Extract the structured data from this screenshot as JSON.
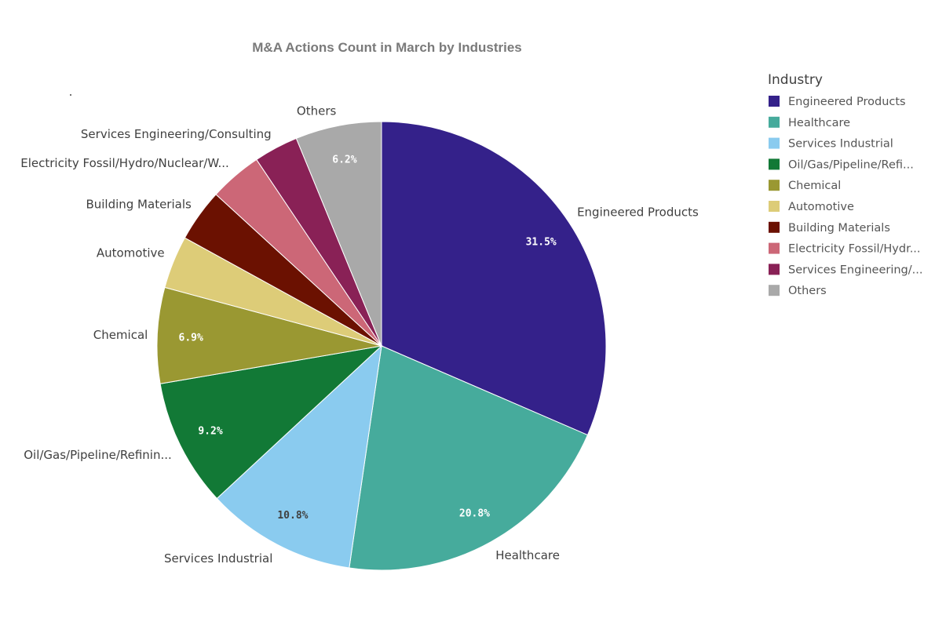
{
  "chart_data": {
    "type": "pie",
    "title": "M&A Actions Count in March by Industries",
    "legend_title": "Industry",
    "legend_position": "right",
    "slices": [
      {
        "name": "Engineered Products",
        "outer_label": "Engineered Products",
        "legend_label": "Engineered Products",
        "value": 31.5,
        "pct_label": "31.5%",
        "color": "#34218a",
        "pct_color": "#ffffff"
      },
      {
        "name": "Healthcare",
        "outer_label": "Healthcare",
        "legend_label": "Healthcare",
        "value": 20.8,
        "pct_label": "20.8%",
        "color": "#46ab9c",
        "pct_color": "#ffffff"
      },
      {
        "name": "Services Industrial",
        "outer_label": "Services Industrial",
        "legend_label": "Services Industrial",
        "value": 10.8,
        "pct_label": "10.8%",
        "color": "#8acbef",
        "pct_color": "#404040"
      },
      {
        "name": "Oil/Gas/Pipeline/Refining",
        "outer_label": "Oil/Gas/Pipeline/Refinin...",
        "legend_label": "Oil/Gas/Pipeline/Refi...",
        "value": 9.2,
        "pct_label": "9.2%",
        "color": "#127936",
        "pct_color": "#ffffff"
      },
      {
        "name": "Chemical",
        "outer_label": "Chemical",
        "legend_label": "Chemical",
        "value": 6.9,
        "pct_label": "6.9%",
        "color": "#9a9832",
        "pct_color": "#ffffff"
      },
      {
        "name": "Automotive",
        "outer_label": "Automotive",
        "legend_label": "Automotive",
        "value": 3.8,
        "pct_label": "",
        "color": "#ddcc78",
        "pct_color": "#404040"
      },
      {
        "name": "Building Materials",
        "outer_label": "Building Materials",
        "legend_label": "Building Materials",
        "value": 3.8,
        "pct_label": "",
        "color": "#6b1101",
        "pct_color": "#ffffff"
      },
      {
        "name": "Electricity Fossil/Hydro/Nuclear",
        "outer_label": "Electricity Fossil/Hydro/Nuclear/W...",
        "legend_label": "Electricity Fossil/Hydr...",
        "value": 3.8,
        "pct_label": "",
        "color": "#cc6777",
        "pct_color": "#ffffff"
      },
      {
        "name": "Services Engineering/Consulting",
        "outer_label": "Services Engineering/Consulting",
        "legend_label": "Services Engineering/...",
        "value": 3.2,
        "pct_label": "",
        "color": "#892156",
        "pct_color": "#ffffff"
      },
      {
        "name": "Others",
        "outer_label": "Others",
        "legend_label": "Others",
        "value": 6.2,
        "pct_label": "6.2%",
        "color": "#a9a9a9",
        "pct_color": "#ffffff"
      }
    ]
  }
}
